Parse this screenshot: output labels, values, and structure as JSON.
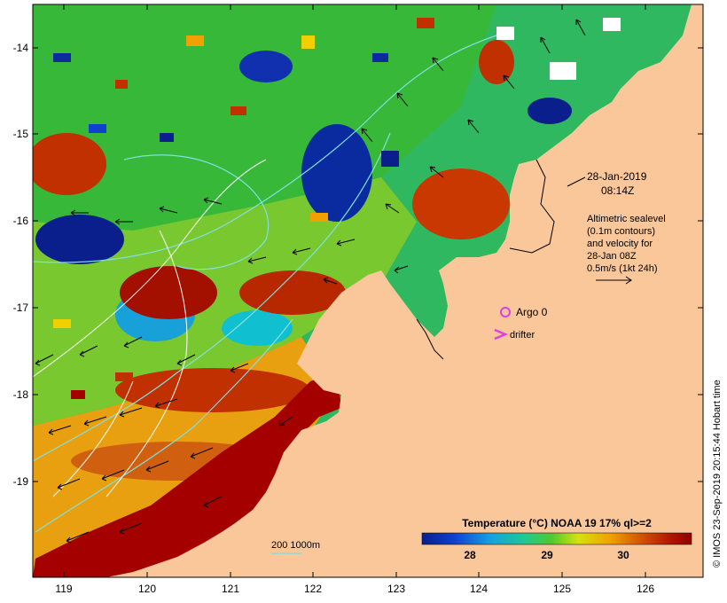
{
  "map": {
    "lon_ticks": [
      "119",
      "120",
      "121",
      "122",
      "123",
      "124",
      "125",
      "126"
    ],
    "lat_ticks": [
      "-14",
      "-15",
      "-16",
      "-17",
      "-18",
      "-19"
    ],
    "date": "28-Jan-2019",
    "time": "08:14Z",
    "sealevel_lines": [
      "Altimetric sealevel",
      "(0.1m contours)",
      "and velocity for",
      "28-Jan 08Z",
      "0.5m/s (1kt 24h)"
    ],
    "argo_label": "Argo 0",
    "drifter_label": "drifter",
    "contour_label": "200  1000m",
    "colorbar_title": "Temperature (°C) NOAA 19 17% ql>=2",
    "colorbar_ticks": [
      "28",
      "29",
      "30"
    ],
    "credit": "© IMOS 23-Sep-2019 20:15:44 Hobart time",
    "colors": {
      "land": "#f9c79a",
      "argo": "#e040e0",
      "contour": "#80e0e0",
      "warm": "#a40000",
      "cool": "#0a1f8c"
    }
  }
}
